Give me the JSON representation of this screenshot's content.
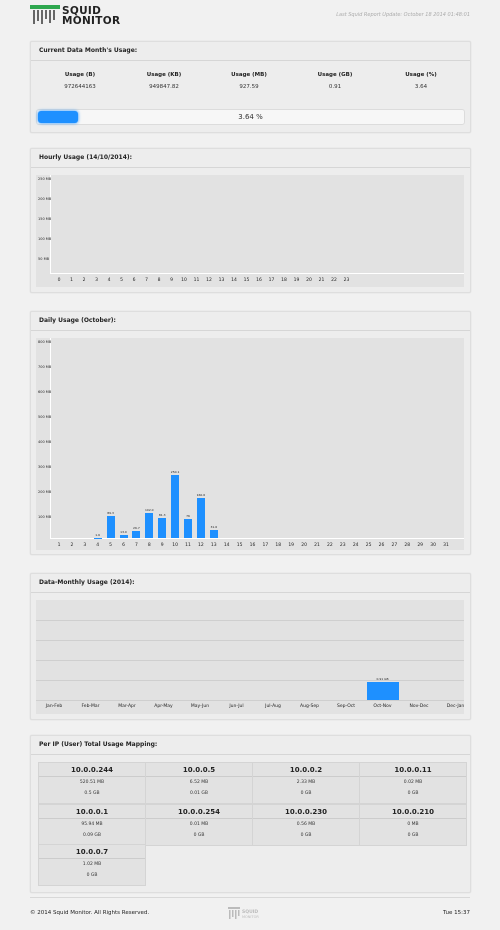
{
  "header": {
    "logo_line1": "SQUID",
    "logo_line2": "MONITOR",
    "last_update": "Last Squid Report Update: October 18 2014 01:48:01"
  },
  "current_month": {
    "title": "Current Data Month's Usage:",
    "columns": [
      {
        "label": "Usage (B)",
        "value": "972644163"
      },
      {
        "label": "Usage (KB)",
        "value": "949847.82"
      },
      {
        "label": "Usage (MB)",
        "value": "927.59"
      },
      {
        "label": "Usage (GB)",
        "value": "0.91"
      },
      {
        "label": "Usage (%)",
        "value": "3.64"
      }
    ],
    "progress_fraction": 0.0364,
    "progress_label": "3.64 %"
  },
  "hourly": {
    "title": "Hourly Usage (14/10/2014):",
    "y_ticks": [
      "250 MB",
      "200 MB",
      "150 MB",
      "100 MB",
      "50 MB"
    ],
    "x_labels": [
      "0",
      "1",
      "2",
      "3",
      "4",
      "5",
      "6",
      "7",
      "8",
      "9",
      "10",
      "11",
      "12",
      "13",
      "14",
      "15",
      "16",
      "17",
      "18",
      "19",
      "20",
      "21",
      "22",
      "23"
    ]
  },
  "daily": {
    "title": "Daily Usage (October):",
    "y_ticks": [
      "800 MB",
      "700 MB",
      "600 MB",
      "500 MB",
      "400 MB",
      "300 MB",
      "200 MB",
      "100 MB"
    ]
  },
  "monthly": {
    "title": "Data-Monthly Usage (2014):"
  },
  "ip_mapping": {
    "title": "Per IP (User) Total Usage Mapping:",
    "cards": [
      {
        "ip": "10.0.0.244",
        "mb": "520.51 MB",
        "gb": "0.5 GB"
      },
      {
        "ip": "10.0.0.5",
        "mb": "6.52 MB",
        "gb": "0.01 GB"
      },
      {
        "ip": "10.0.0.2",
        "mb": "2.33 MB",
        "gb": "0 GB"
      },
      {
        "ip": "10.0.0.11",
        "mb": "0.02 MB",
        "gb": "0 GB"
      },
      {
        "ip": "10.0.0.1",
        "mb": "95.94 MB",
        "gb": "0.09 GB"
      },
      {
        "ip": "10.0.0.254",
        "mb": "0.01 MB",
        "gb": "0 GB"
      },
      {
        "ip": "10.0.0.230",
        "mb": "0.56 MB",
        "gb": "0 GB"
      },
      {
        "ip": "10.0.0.210",
        "mb": "0 MB",
        "gb": "0 GB"
      },
      {
        "ip": "10.0.0.7",
        "mb": "1.02 MB",
        "gb": "0 GB"
      }
    ]
  },
  "footer": {
    "copyright": "© 2014 Squid Monitor. All Rights Reserved.",
    "logo_line1": "SQUID",
    "logo_line2": "MONITOR",
    "clock": "Tue 15:37"
  },
  "colors": {
    "accent": "#1e90ff",
    "panel": "#ededed",
    "plot": "#e2e2e2"
  },
  "chart_data": [
    {
      "type": "bar",
      "title": "Hourly Usage (14/10/2014):",
      "ylabel": "MB",
      "ylim": [
        0,
        250
      ],
      "categories": [
        "0",
        "1",
        "2",
        "3",
        "4",
        "5",
        "6",
        "7",
        "8",
        "9",
        "10",
        "11",
        "12",
        "13",
        "14",
        "15",
        "16",
        "17",
        "18",
        "19",
        "20",
        "21",
        "22",
        "23"
      ],
      "values": [
        0,
        0,
        0,
        0,
        0,
        0,
        0,
        0,
        0,
        0,
        0,
        0,
        0,
        0,
        0,
        0,
        0,
        0,
        0,
        0,
        0,
        0,
        0,
        0
      ]
    },
    {
      "type": "bar",
      "title": "Daily Usage (October):",
      "ylabel": "MB",
      "ylim": [
        0,
        800
      ],
      "categories": [
        "1",
        "2",
        "3",
        "4",
        "5",
        "6",
        "7",
        "8",
        "9",
        "10",
        "11",
        "12",
        "13",
        "14",
        "15",
        "16",
        "17",
        "18",
        "19",
        "20",
        "21",
        "22",
        "23",
        "24",
        "25",
        "26",
        "27",
        "28",
        "29",
        "30",
        "31"
      ],
      "values": [
        0,
        0,
        0,
        1.6,
        89.3,
        13.0,
        26.7,
        102.0,
        81.3,
        250.1,
        76,
        160.6,
        31.6,
        0,
        0,
        0,
        0,
        0,
        0,
        0,
        0,
        0,
        0,
        0,
        0,
        0,
        0,
        0,
        0,
        0,
        0
      ],
      "data_labels": [
        "",
        "",
        "",
        "1.6",
        "89.3",
        "13.0",
        "26.7",
        "102.0",
        "81.3",
        "250.1",
        "76",
        "160.6",
        "31.6",
        "",
        "",
        "",
        "",
        "",
        "",
        "",
        "",
        "",
        "",
        "",
        "",
        "",
        "",
        "",
        "",
        "",
        ""
      ]
    },
    {
      "type": "bar",
      "title": "Data-Monthly Usage (2014):",
      "ylabel": "GB",
      "ylim": [
        0,
        5
      ],
      "categories": [
        "Jan-Feb",
        "Feb-Mar",
        "Mar-Apr",
        "Apr-May",
        "May-Jun",
        "Jun-Jul",
        "Jul-Aug",
        "Aug-Sep",
        "Sep-Oct",
        "Oct-Nov",
        "Nov-Dec",
        "Dec-Jan"
      ],
      "values": [
        0,
        0,
        0,
        0,
        0,
        0,
        0,
        0,
        0,
        0.91,
        0,
        0
      ],
      "data_labels": [
        "",
        "",
        "",
        "",
        "",
        "",
        "",
        "",
        "",
        "0.91 GB",
        "",
        ""
      ]
    }
  ]
}
